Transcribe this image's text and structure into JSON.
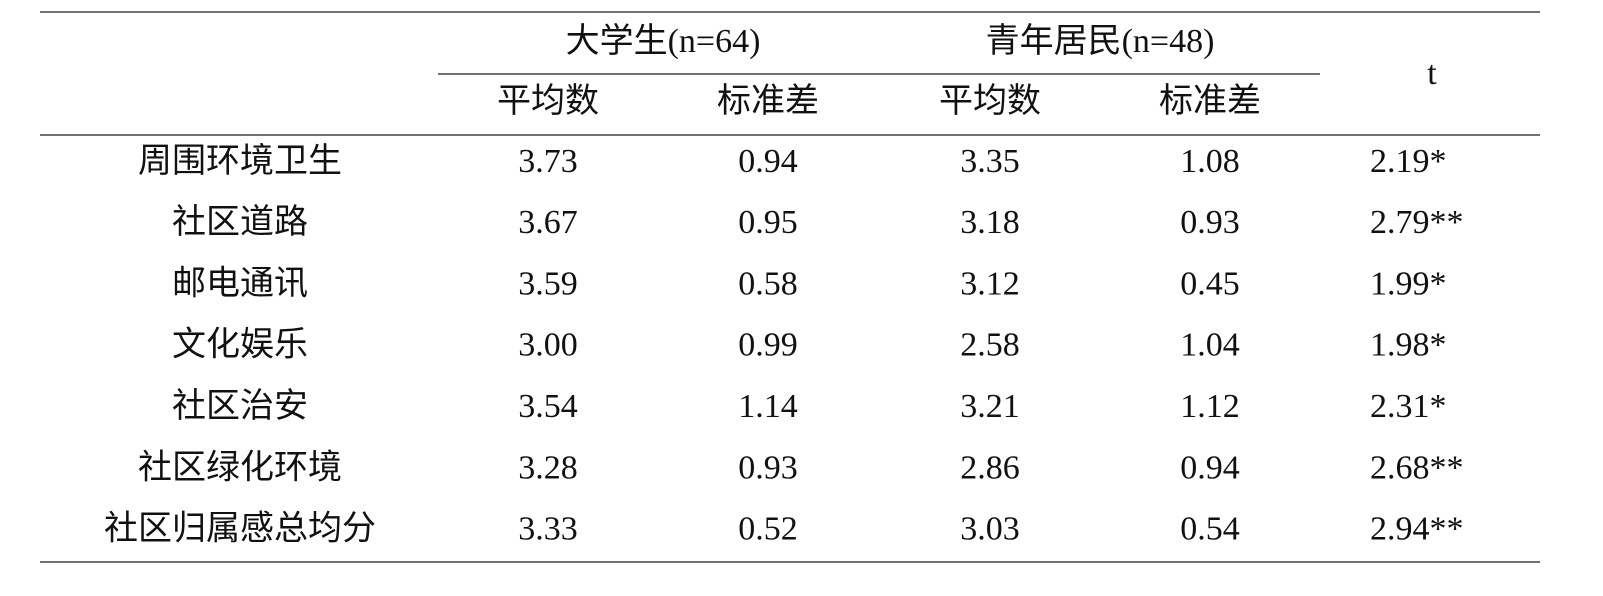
{
  "table": {
    "groups": [
      "大学生(n=64)",
      "青年居民(n=48)"
    ],
    "subheaders": [
      "平均数",
      "标准差",
      "平均数",
      "标准差"
    ],
    "t_header": "t",
    "rows": [
      [
        "周围环境卫生",
        "3.73",
        "0.94",
        "3.35",
        "1.08",
        "2.19*"
      ],
      [
        "社区道路",
        "3.67",
        "0.95",
        "3.18",
        "0.93",
        "2.79**"
      ],
      [
        "邮电通讯",
        "3.59",
        "0.58",
        "3.12",
        "0.45",
        "1.99*"
      ],
      [
        "文化娱乐",
        "3.00",
        "0.99",
        "2.58",
        "1.04",
        "1.98*"
      ],
      [
        "社区治安",
        "3.54",
        "1.14",
        "3.21",
        "1.12",
        "2.31*"
      ],
      [
        "社区绿化环境",
        "3.28",
        "0.93",
        "2.86",
        "0.94",
        "2.68**"
      ],
      [
        "社区归属感总均分",
        "3.33",
        "0.52",
        "3.03",
        "0.54",
        "2.94**"
      ]
    ]
  }
}
